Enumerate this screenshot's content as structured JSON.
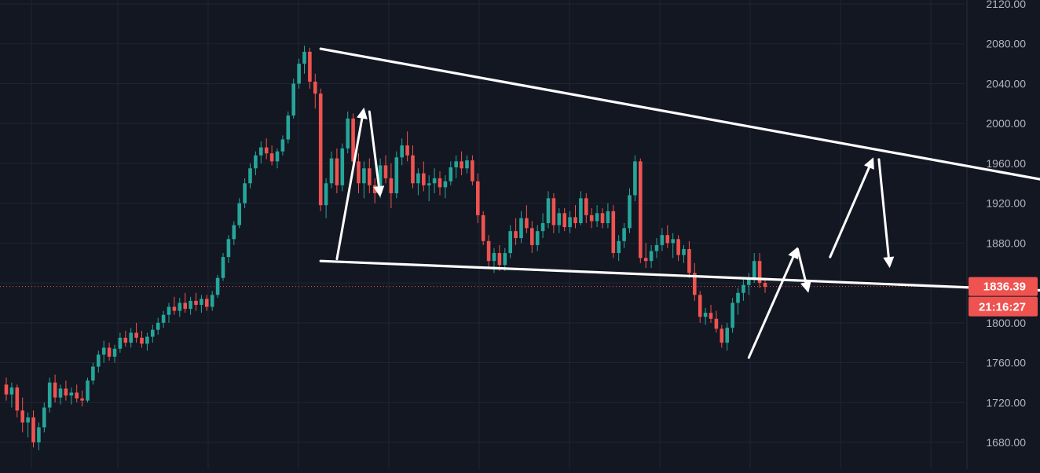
{
  "chart_data": {
    "type": "candlestick",
    "y_axis": {
      "ticks": [
        "2120.00",
        "2080.00",
        "2040.00",
        "2000.00",
        "1960.00",
        "1920.00",
        "1880.00",
        "1840.00",
        "1800.00",
        "1760.00",
        "1720.00",
        "1680.00"
      ],
      "ylim": [
        1660,
        2125
      ],
      "position": "right",
      "grid": true
    },
    "last_price": {
      "label": "1836.39",
      "value": 1836.39,
      "countdown": "21:16:27"
    },
    "colors": {
      "background": "#131722",
      "grid": "#1f2433",
      "up": "#26a69a",
      "down": "#ef5350",
      "axis_text": "#b2b5be",
      "annotation": "#ffffff"
    },
    "candles": [
      [
        1738,
        1745,
        1722,
        1728
      ],
      [
        1728,
        1740,
        1715,
        1735
      ],
      [
        1735,
        1738,
        1705,
        1712
      ],
      [
        1712,
        1725,
        1690,
        1700
      ],
      [
        1700,
        1710,
        1685,
        1705
      ],
      [
        1705,
        1712,
        1675,
        1680
      ],
      [
        1680,
        1700,
        1672,
        1695
      ],
      [
        1695,
        1720,
        1690,
        1715
      ],
      [
        1715,
        1745,
        1710,
        1740
      ],
      [
        1740,
        1748,
        1720,
        1725
      ],
      [
        1725,
        1738,
        1718,
        1734
      ],
      [
        1734,
        1742,
        1722,
        1727
      ],
      [
        1727,
        1735,
        1718,
        1730
      ],
      [
        1730,
        1738,
        1720,
        1724
      ],
      [
        1724,
        1732,
        1716,
        1722
      ],
      [
        1722,
        1745,
        1720,
        1742
      ],
      [
        1742,
        1760,
        1738,
        1756
      ],
      [
        1756,
        1772,
        1750,
        1768
      ],
      [
        1768,
        1782,
        1760,
        1775
      ],
      [
        1775,
        1780,
        1762,
        1766
      ],
      [
        1766,
        1778,
        1760,
        1774
      ],
      [
        1774,
        1790,
        1770,
        1785
      ],
      [
        1785,
        1792,
        1776,
        1780
      ],
      [
        1780,
        1795,
        1775,
        1790
      ],
      [
        1790,
        1800,
        1780,
        1785
      ],
      [
        1785,
        1792,
        1775,
        1779
      ],
      [
        1779,
        1790,
        1772,
        1786
      ],
      [
        1786,
        1798,
        1780,
        1793
      ],
      [
        1793,
        1805,
        1788,
        1800
      ],
      [
        1800,
        1812,
        1795,
        1808
      ],
      [
        1808,
        1820,
        1800,
        1816
      ],
      [
        1816,
        1826,
        1808,
        1812
      ],
      [
        1812,
        1825,
        1806,
        1820
      ],
      [
        1820,
        1830,
        1810,
        1814
      ],
      [
        1814,
        1826,
        1808,
        1822
      ],
      [
        1822,
        1830,
        1812,
        1818
      ],
      [
        1818,
        1828,
        1810,
        1824
      ],
      [
        1824,
        1828,
        1812,
        1816
      ],
      [
        1816,
        1832,
        1812,
        1828
      ],
      [
        1828,
        1848,
        1825,
        1845
      ],
      [
        1845,
        1870,
        1842,
        1866
      ],
      [
        1866,
        1888,
        1860,
        1884
      ],
      [
        1884,
        1902,
        1878,
        1898
      ],
      [
        1898,
        1925,
        1895,
        1920
      ],
      [
        1920,
        1945,
        1915,
        1940
      ],
      [
        1940,
        1960,
        1935,
        1955
      ],
      [
        1955,
        1972,
        1948,
        1968
      ],
      [
        1968,
        1982,
        1960,
        1976
      ],
      [
        1976,
        1985,
        1964,
        1970
      ],
      [
        1970,
        1978,
        1958,
        1962
      ],
      [
        1962,
        1975,
        1955,
        1972
      ],
      [
        1972,
        1988,
        1968,
        1984
      ],
      [
        1984,
        2012,
        1980,
        2008
      ],
      [
        2008,
        2045,
        2005,
        2040
      ],
      [
        2040,
        2065,
        2035,
        2060
      ],
      [
        2060,
        2078,
        2050,
        2072
      ],
      [
        2072,
        2076,
        2035,
        2042
      ],
      [
        2042,
        2050,
        2015,
        2030
      ],
      [
        2030,
        2035,
        1912,
        1918
      ],
      [
        1918,
        1945,
        1905,
        1940
      ],
      [
        1940,
        1972,
        1935,
        1965
      ],
      [
        1965,
        1975,
        1930,
        1938
      ],
      [
        1938,
        1980,
        1932,
        1975
      ],
      [
        1975,
        2012,
        1970,
        2005
      ],
      [
        2005,
        2010,
        1955,
        1962
      ],
      [
        1962,
        1970,
        1930,
        1940
      ],
      [
        1940,
        1962,
        1925,
        1955
      ],
      [
        1955,
        1965,
        1930,
        1938
      ],
      [
        1938,
        1945,
        1920,
        1930
      ],
      [
        1930,
        1965,
        1925,
        1958
      ],
      [
        1958,
        1968,
        1940,
        1945
      ],
      [
        1945,
        1960,
        1915,
        1930
      ],
      [
        1930,
        1972,
        1925,
        1966
      ],
      [
        1966,
        1985,
        1958,
        1978
      ],
      [
        1978,
        1992,
        1962,
        1968
      ],
      [
        1968,
        1978,
        1935,
        1940
      ],
      [
        1940,
        1955,
        1928,
        1950
      ],
      [
        1950,
        1962,
        1932,
        1938
      ],
      [
        1938,
        1948,
        1922,
        1940
      ],
      [
        1940,
        1955,
        1930,
        1945
      ],
      [
        1945,
        1952,
        1928,
        1936
      ],
      [
        1936,
        1948,
        1925,
        1942
      ],
      [
        1942,
        1962,
        1938,
        1956
      ],
      [
        1956,
        1968,
        1945,
        1962
      ],
      [
        1962,
        1972,
        1948,
        1955
      ],
      [
        1955,
        1968,
        1950,
        1963
      ],
      [
        1963,
        1968,
        1938,
        1942
      ],
      [
        1942,
        1950,
        1900,
        1908
      ],
      [
        1908,
        1912,
        1878,
        1882
      ],
      [
        1882,
        1888,
        1855,
        1862
      ],
      [
        1862,
        1875,
        1850,
        1870
      ],
      [
        1870,
        1878,
        1852,
        1858
      ],
      [
        1858,
        1875,
        1852,
        1870
      ],
      [
        1870,
        1898,
        1865,
        1892
      ],
      [
        1892,
        1905,
        1878,
        1885
      ],
      [
        1885,
        1912,
        1880,
        1905
      ],
      [
        1905,
        1918,
        1890,
        1895
      ],
      [
        1895,
        1902,
        1870,
        1878
      ],
      [
        1878,
        1898,
        1872,
        1892
      ],
      [
        1892,
        1910,
        1885,
        1900
      ],
      [
        1900,
        1932,
        1895,
        1925
      ],
      [
        1925,
        1930,
        1890,
        1898
      ],
      [
        1898,
        1915,
        1890,
        1910
      ],
      [
        1910,
        1915,
        1892,
        1896
      ],
      [
        1896,
        1912,
        1890,
        1906
      ],
      [
        1906,
        1918,
        1895,
        1900
      ],
      [
        1900,
        1932,
        1898,
        1925
      ],
      [
        1925,
        1930,
        1900,
        1908
      ],
      [
        1908,
        1915,
        1895,
        1902
      ],
      [
        1902,
        1918,
        1896,
        1910
      ],
      [
        1910,
        1915,
        1895,
        1900
      ],
      [
        1900,
        1920,
        1895,
        1912
      ],
      [
        1912,
        1918,
        1865,
        1870
      ],
      [
        1870,
        1888,
        1862,
        1882
      ],
      [
        1882,
        1900,
        1875,
        1895
      ],
      [
        1895,
        1935,
        1890,
        1928
      ],
      [
        1928,
        1968,
        1922,
        1962
      ],
      [
        1962,
        1965,
        1860,
        1865
      ],
      [
        1865,
        1880,
        1855,
        1862
      ],
      [
        1862,
        1878,
        1855,
        1872
      ],
      [
        1872,
        1885,
        1865,
        1878
      ],
      [
        1878,
        1895,
        1872,
        1888
      ],
      [
        1888,
        1898,
        1875,
        1880
      ],
      [
        1880,
        1890,
        1865,
        1884
      ],
      [
        1884,
        1888,
        1862,
        1868
      ],
      [
        1868,
        1878,
        1860,
        1874
      ],
      [
        1874,
        1882,
        1845,
        1850
      ],
      [
        1850,
        1860,
        1822,
        1828
      ],
      [
        1828,
        1832,
        1800,
        1806
      ],
      [
        1806,
        1815,
        1798,
        1810
      ],
      [
        1810,
        1818,
        1800,
        1804
      ],
      [
        1804,
        1812,
        1790,
        1794
      ],
      [
        1794,
        1798,
        1775,
        1780
      ],
      [
        1780,
        1800,
        1772,
        1795
      ],
      [
        1795,
        1825,
        1790,
        1820
      ],
      [
        1820,
        1835,
        1808,
        1830
      ],
      [
        1830,
        1845,
        1822,
        1838
      ],
      [
        1838,
        1850,
        1828,
        1844
      ],
      [
        1844,
        1870,
        1840,
        1862
      ],
      [
        1862,
        1870,
        1835,
        1840
      ],
      [
        1840,
        1845,
        1830,
        1836
      ]
    ],
    "annotations": [
      {
        "type": "trendline",
        "points": [
          [
            58,
            2075
          ],
          [
            279,
            1857
          ]
        ]
      },
      {
        "type": "trendline",
        "points": [
          [
            58,
            1862
          ],
          [
            279,
            1813
          ]
        ]
      },
      {
        "type": "arrow",
        "points": [
          [
            61,
            1864
          ],
          [
            66,
            2016
          ]
        ]
      },
      {
        "type": "arrow",
        "points": [
          [
            67,
            2012
          ],
          [
            69,
            1926
          ]
        ]
      },
      {
        "type": "arrow",
        "points": [
          [
            152,
            1866
          ],
          [
            160,
            1966
          ]
        ]
      },
      {
        "type": "arrow",
        "points": [
          [
            161,
            1964
          ],
          [
            163,
            1855
          ]
        ]
      },
      {
        "type": "arrow",
        "points": [
          [
            137,
            1765
          ],
          [
            146,
            1876
          ]
        ]
      },
      {
        "type": "arrow",
        "points": [
          [
            146,
            1874
          ],
          [
            148,
            1830
          ]
        ]
      }
    ]
  }
}
